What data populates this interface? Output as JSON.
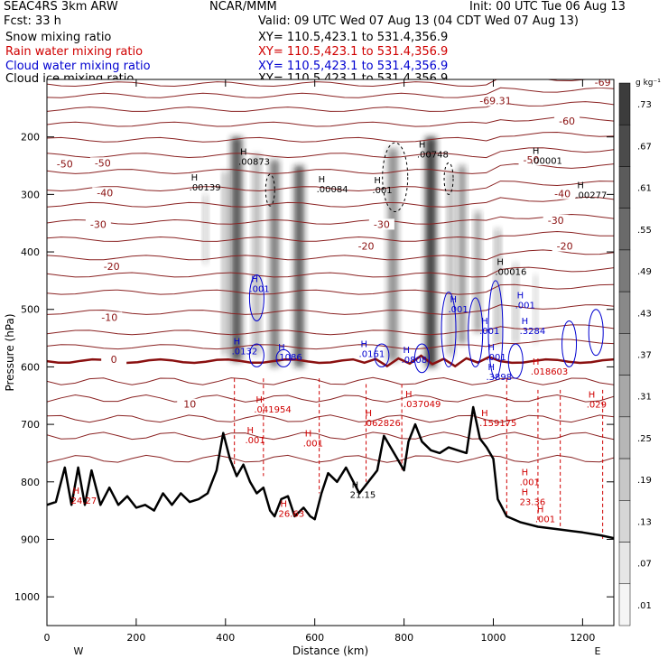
{
  "header": {
    "model": "SEAC4RS  3km ARW",
    "org": "NCAR/MMM",
    "init": "Init: 00 UTC Tue 06 Aug 13",
    "fcst": "Fcst:    33 h",
    "valid": "Valid: 09 UTC Wed 07 Aug 13 (04 CDT Wed 07 Aug 13)",
    "fields": [
      {
        "name": "Snow mixing ratio",
        "xy": "XY= 110.5,423.1 to 531.4,356.9",
        "color": "#000000"
      },
      {
        "name": "Rain water mixing ratio",
        "xy": "XY= 110.5,423.1 to 531.4,356.9",
        "color": "#d00000"
      },
      {
        "name": "Cloud water mixing ratio",
        "xy": "XY= 110.5,423.1 to 531.4,356.9",
        "color": "#0000d0"
      },
      {
        "name": "Cloud ice mixing ratio",
        "xy": "XY= 110.5,423.1 to 531.4,356.9",
        "color": "#000000"
      }
    ]
  },
  "chart_data": {
    "type": "heatmap",
    "title": "",
    "xlabel": "Distance (km)",
    "ylabel": "Pressure (hPa)",
    "xlim": [
      0,
      1270
    ],
    "ylim": [
      1050,
      100
    ],
    "x_ticks": [
      0,
      200,
      400,
      600,
      800,
      1000,
      1200
    ],
    "y_ticks": [
      200,
      300,
      400,
      500,
      600,
      700,
      800,
      900,
      1000
    ],
    "x_end_labels": {
      "left": "W",
      "right": "E"
    },
    "colorbar": {
      "unit": "g kg⁻¹",
      "labels": [
        ".73",
        ".67",
        ".61",
        ".55",
        ".49",
        ".43",
        ".37",
        ".31",
        ".25",
        ".19",
        ".13",
        ".07",
        ".01"
      ]
    },
    "temperature_contours": [
      {
        "label": "-69.31",
        "x": 1005,
        "p": 140
      },
      {
        "label": "-69",
        "x": 1245,
        "p": 108
      },
      {
        "label": "-60",
        "x": 1165,
        "p": 175
      },
      {
        "label": "-50",
        "x": 40,
        "p": 250
      },
      {
        "label": "-50",
        "x": 125,
        "p": 248
      },
      {
        "label": "-50",
        "x": 1085,
        "p": 243
      },
      {
        "label": "-40",
        "x": 130,
        "p": 300
      },
      {
        "label": "-40",
        "x": 1155,
        "p": 302
      },
      {
        "label": "-30",
        "x": 115,
        "p": 355
      },
      {
        "label": "-30",
        "x": 750,
        "p": 355
      },
      {
        "label": "-30",
        "x": 1140,
        "p": 348
      },
      {
        "label": "-20",
        "x": 145,
        "p": 428
      },
      {
        "label": "-20",
        "x": 715,
        "p": 393
      },
      {
        "label": "-20",
        "x": 1160,
        "p": 393
      },
      {
        "label": "-10",
        "x": 140,
        "p": 517
      },
      {
        "label": "0",
        "x": 150,
        "p": 590
      },
      {
        "label": "10",
        "x": 320,
        "p": 668
      }
    ],
    "maxima": [
      {
        "value": ".00139",
        "x": 335,
        "p": 290,
        "color": "#000000"
      },
      {
        "value": ".00873",
        "x": 445,
        "p": 245,
        "color": "#000000"
      },
      {
        "value": ".00084",
        "x": 620,
        "p": 293,
        "color": "#000000"
      },
      {
        "value": ".001",
        "x": 745,
        "p": 295,
        "color": "#000000"
      },
      {
        "value": ".00748",
        "x": 845,
        "p": 233,
        "color": "#000000"
      },
      {
        "value": ".00001",
        "x": 1100,
        "p": 244,
        "color": "#000000"
      },
      {
        "value": ".00277",
        "x": 1200,
        "p": 303,
        "color": "#000000"
      },
      {
        "value": ".00016",
        "x": 1020,
        "p": 437,
        "color": "#000000"
      },
      {
        "value": ".001",
        "x": 470,
        "p": 467,
        "color": "#0000d0"
      },
      {
        "value": ".001",
        "x": 915,
        "p": 502,
        "color": "#0000d0"
      },
      {
        "value": ".001",
        "x": 985,
        "p": 540,
        "color": "#0000d0"
      },
      {
        "value": ".001",
        "x": 1065,
        "p": 495,
        "color": "#0000d0"
      },
      {
        "value": ".3284",
        "x": 1075,
        "p": 540,
        "color": "#0000d0"
      },
      {
        "value": ".0132",
        "x": 430,
        "p": 575,
        "color": "#0000d0"
      },
      {
        "value": ".1086",
        "x": 530,
        "p": 585,
        "color": "#0000d0"
      },
      {
        "value": ".0161",
        "x": 715,
        "p": 580,
        "color": "#0000d0"
      },
      {
        "value": ".0808",
        "x": 810,
        "p": 590,
        "color": "#0000d0"
      },
      {
        "value": ".001",
        "x": 1000,
        "p": 585,
        "color": "#0000d0"
      },
      {
        "value": ".3898",
        "x": 1000,
        "p": 620,
        "color": "#0000d0"
      },
      {
        "value": ".041954",
        "x": 480,
        "p": 676,
        "color": "#d00000"
      },
      {
        "value": ".037049",
        "x": 815,
        "p": 667,
        "color": "#d00000"
      },
      {
        "value": ".062826",
        "x": 725,
        "p": 700,
        "color": "#d00000"
      },
      {
        "value": ".159175",
        "x": 985,
        "p": 700,
        "color": "#d00000"
      },
      {
        "value": ".018603",
        "x": 1100,
        "p": 610,
        "color": "#d00000"
      },
      {
        "value": ".029",
        "x": 1225,
        "p": 668,
        "color": "#d00000"
      },
      {
        "value": ".001",
        "x": 460,
        "p": 730,
        "color": "#d00000"
      },
      {
        "value": ".001",
        "x": 590,
        "p": 735,
        "color": "#d00000"
      },
      {
        "value": ".001",
        "x": 1075,
        "p": 803,
        "color": "#d00000"
      },
      {
        "value": "23.36",
        "x": 1075,
        "p": 837,
        "color": "#d00000"
      },
      {
        "value": ".001",
        "x": 1110,
        "p": 867,
        "color": "#d00000"
      },
      {
        "value": "24.27",
        "x": 70,
        "p": 835,
        "color": "#d00000"
      },
      {
        "value": "26.63",
        "x": 535,
        "p": 858,
        "color": "#d00000"
      },
      {
        "value": "21.15",
        "x": 695,
        "p": 825,
        "color": "#000000"
      }
    ],
    "terrain_pressure": [
      [
        0,
        840
      ],
      [
        20,
        835
      ],
      [
        40,
        775
      ],
      [
        55,
        840
      ],
      [
        70,
        775
      ],
      [
        85,
        840
      ],
      [
        100,
        780
      ],
      [
        120,
        840
      ],
      [
        140,
        810
      ],
      [
        160,
        840
      ],
      [
        180,
        825
      ],
      [
        200,
        845
      ],
      [
        220,
        840
      ],
      [
        240,
        850
      ],
      [
        260,
        820
      ],
      [
        280,
        840
      ],
      [
        300,
        820
      ],
      [
        320,
        835
      ],
      [
        340,
        830
      ],
      [
        360,
        820
      ],
      [
        380,
        780
      ],
      [
        395,
        715
      ],
      [
        410,
        760
      ],
      [
        425,
        790
      ],
      [
        440,
        770
      ],
      [
        455,
        800
      ],
      [
        470,
        820
      ],
      [
        485,
        810
      ],
      [
        500,
        850
      ],
      [
        510,
        860
      ],
      [
        525,
        830
      ],
      [
        540,
        825
      ],
      [
        555,
        860
      ],
      [
        575,
        845
      ],
      [
        590,
        860
      ],
      [
        600,
        865
      ],
      [
        615,
        820
      ],
      [
        630,
        785
      ],
      [
        650,
        800
      ],
      [
        670,
        775
      ],
      [
        690,
        805
      ],
      [
        700,
        820
      ],
      [
        720,
        800
      ],
      [
        740,
        780
      ],
      [
        755,
        720
      ],
      [
        770,
        740
      ],
      [
        785,
        760
      ],
      [
        800,
        780
      ],
      [
        810,
        730
      ],
      [
        825,
        700
      ],
      [
        840,
        730
      ],
      [
        860,
        745
      ],
      [
        880,
        750
      ],
      [
        900,
        740
      ],
      [
        920,
        745
      ],
      [
        940,
        750
      ],
      [
        955,
        670
      ],
      [
        970,
        725
      ],
      [
        985,
        740
      ],
      [
        1000,
        760
      ],
      [
        1010,
        830
      ],
      [
        1030,
        860
      ],
      [
        1060,
        870
      ],
      [
        1100,
        878
      ],
      [
        1150,
        883
      ],
      [
        1200,
        888
      ],
      [
        1240,
        893
      ],
      [
        1270,
        898
      ]
    ]
  }
}
